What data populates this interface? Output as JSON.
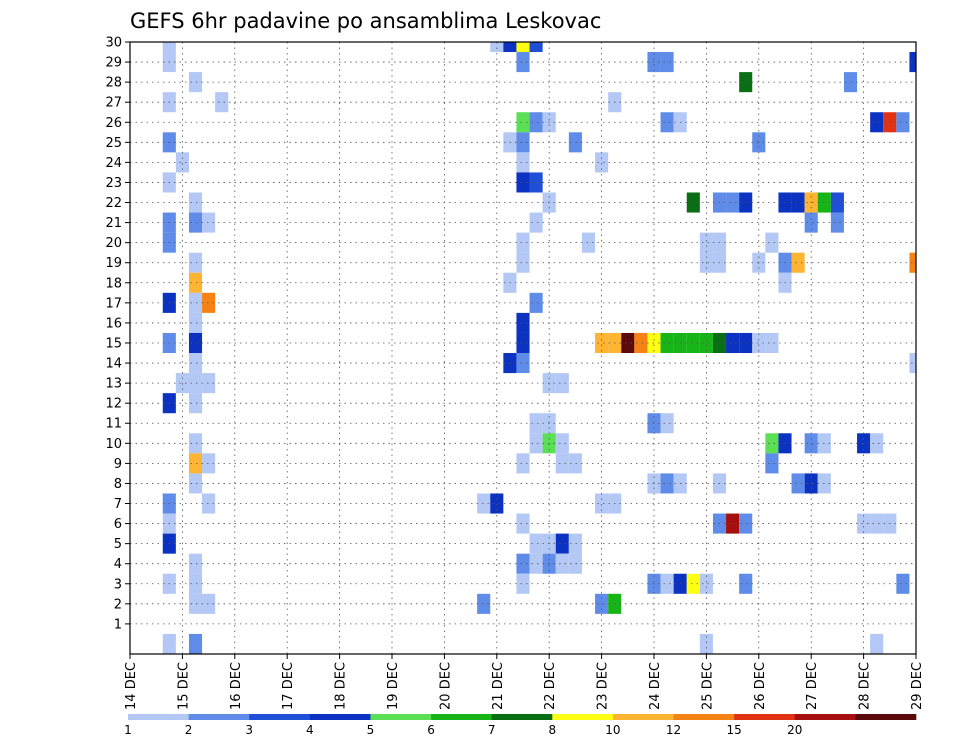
{
  "chart_data": {
    "type": "heatmap",
    "title": "GEFS 6hr padavine po ansamblima Leskovac",
    "xlabel": "",
    "ylabel": "",
    "x_tick_labels": [
      "14 DEC",
      "15 DEC",
      "16 DEC",
      "17 DEC",
      "18 DEC",
      "19 DEC",
      "20 DEC",
      "21 DEC",
      "22 DEC",
      "23 DEC",
      "24 DEC",
      "25 DEC",
      "26 DEC",
      "27 DEC",
      "28 DEC",
      "29 DEC"
    ],
    "y_tick_labels": [
      "1",
      "2",
      "3",
      "4",
      "5",
      "6",
      "7",
      "8",
      "9",
      "10",
      "11",
      "12",
      "13",
      "14",
      "15",
      "16",
      "17",
      "18",
      "19",
      "20",
      "21",
      "22",
      "23",
      "24",
      "25",
      "26",
      "27",
      "28",
      "29",
      "30"
    ],
    "x_unit": "day of December (6-hourly steps, 4 per day)",
    "xlim": [
      14,
      29
    ],
    "ylim": [
      0,
      30
    ],
    "grid": true,
    "colorbar": {
      "position": "bottom",
      "labels": [
        "1",
        "2",
        "3",
        "4",
        "5",
        "6",
        "7",
        "8",
        "10",
        "12",
        "15",
        "20"
      ],
      "colors": [
        "#b4c8f5",
        "#5f8ce8",
        "#1f4fd6",
        "#0b32c0",
        "#5be055",
        "#16b416",
        "#0a6e14",
        "#ffff14",
        "#ffb432",
        "#f58214",
        "#e13214",
        "#a50f0f",
        "#5a0a0a"
      ]
    },
    "cells": [
      {
        "d": 14.75,
        "m": 30,
        "c": 0
      },
      {
        "d": 21.0,
        "m": 30,
        "c": 0
      },
      {
        "d": 21.25,
        "m": 30,
        "c": 3
      },
      {
        "d": 21.5,
        "m": 30,
        "c": 7
      },
      {
        "d": 21.75,
        "m": 30,
        "c": 2
      },
      {
        "d": 14.75,
        "m": 29,
        "c": 0
      },
      {
        "d": 21.5,
        "m": 29,
        "c": 1
      },
      {
        "d": 24.0,
        "m": 29,
        "c": 1
      },
      {
        "d": 24.25,
        "m": 29,
        "c": 1
      },
      {
        "d": 29.0,
        "m": 29,
        "c": 3
      },
      {
        "d": 15.25,
        "m": 28,
        "c": 0
      },
      {
        "d": 25.75,
        "m": 28,
        "c": 6
      },
      {
        "d": 27.75,
        "m": 28,
        "c": 1
      },
      {
        "d": 14.75,
        "m": 27,
        "c": 0
      },
      {
        "d": 15.75,
        "m": 27,
        "c": 0
      },
      {
        "d": 23.25,
        "m": 27,
        "c": 0
      },
      {
        "d": 21.5,
        "m": 26,
        "c": 4
      },
      {
        "d": 21.75,
        "m": 26,
        "c": 1
      },
      {
        "d": 22.0,
        "m": 26,
        "c": 0
      },
      {
        "d": 24.25,
        "m": 26,
        "c": 1
      },
      {
        "d": 24.5,
        "m": 26,
        "c": 0
      },
      {
        "d": 28.25,
        "m": 26,
        "c": 3
      },
      {
        "d": 28.5,
        "m": 26,
        "c": 10
      },
      {
        "d": 28.75,
        "m": 26,
        "c": 1
      },
      {
        "d": 14.75,
        "m": 25,
        "c": 1
      },
      {
        "d": 21.25,
        "m": 25,
        "c": 0
      },
      {
        "d": 21.5,
        "m": 25,
        "c": 1
      },
      {
        "d": 22.5,
        "m": 25,
        "c": 1
      },
      {
        "d": 26.0,
        "m": 25,
        "c": 1
      },
      {
        "d": 15.0,
        "m": 24,
        "c": 0
      },
      {
        "d": 21.5,
        "m": 24,
        "c": 0
      },
      {
        "d": 23.0,
        "m": 24,
        "c": 0
      },
      {
        "d": 14.75,
        "m": 23,
        "c": 0
      },
      {
        "d": 21.5,
        "m": 23,
        "c": 3
      },
      {
        "d": 21.75,
        "m": 23,
        "c": 2
      },
      {
        "d": 15.25,
        "m": 22,
        "c": 0
      },
      {
        "d": 22.0,
        "m": 22,
        "c": 0
      },
      {
        "d": 24.75,
        "m": 22,
        "c": 6
      },
      {
        "d": 25.25,
        "m": 22,
        "c": 1
      },
      {
        "d": 25.5,
        "m": 22,
        "c": 1
      },
      {
        "d": 25.75,
        "m": 22,
        "c": 3
      },
      {
        "d": 26.5,
        "m": 22,
        "c": 3
      },
      {
        "d": 26.75,
        "m": 22,
        "c": 3
      },
      {
        "d": 27.0,
        "m": 22,
        "c": 8
      },
      {
        "d": 27.25,
        "m": 22,
        "c": 5
      },
      {
        "d": 27.5,
        "m": 22,
        "c": 2
      },
      {
        "d": 14.75,
        "m": 21,
        "c": 1
      },
      {
        "d": 15.25,
        "m": 21,
        "c": 1
      },
      {
        "d": 15.5,
        "m": 21,
        "c": 0
      },
      {
        "d": 21.75,
        "m": 21,
        "c": 0
      },
      {
        "d": 27.0,
        "m": 21,
        "c": 1
      },
      {
        "d": 27.5,
        "m": 21,
        "c": 1
      },
      {
        "d": 14.75,
        "m": 20,
        "c": 1
      },
      {
        "d": 21.5,
        "m": 20,
        "c": 0
      },
      {
        "d": 22.75,
        "m": 20,
        "c": 0
      },
      {
        "d": 25.0,
        "m": 20,
        "c": 0
      },
      {
        "d": 25.25,
        "m": 20,
        "c": 0
      },
      {
        "d": 26.25,
        "m": 20,
        "c": 0
      },
      {
        "d": 15.25,
        "m": 19,
        "c": 0
      },
      {
        "d": 21.5,
        "m": 19,
        "c": 0
      },
      {
        "d": 25.0,
        "m": 19,
        "c": 0
      },
      {
        "d": 25.25,
        "m": 19,
        "c": 0
      },
      {
        "d": 26.0,
        "m": 19,
        "c": 0
      },
      {
        "d": 26.5,
        "m": 19,
        "c": 1
      },
      {
        "d": 26.75,
        "m": 19,
        "c": 8
      },
      {
        "d": 29.0,
        "m": 19,
        "c": 9
      },
      {
        "d": 15.25,
        "m": 18,
        "c": 8
      },
      {
        "d": 21.25,
        "m": 18,
        "c": 0
      },
      {
        "d": 26.5,
        "m": 18,
        "c": 0
      },
      {
        "d": 14.75,
        "m": 17,
        "c": 3
      },
      {
        "d": 15.25,
        "m": 17,
        "c": 0
      },
      {
        "d": 15.5,
        "m": 17,
        "c": 9
      },
      {
        "d": 21.75,
        "m": 17,
        "c": 1
      },
      {
        "d": 15.25,
        "m": 16,
        "c": 0
      },
      {
        "d": 21.5,
        "m": 16,
        "c": 3
      },
      {
        "d": 14.75,
        "m": 15,
        "c": 1
      },
      {
        "d": 15.25,
        "m": 15,
        "c": 3
      },
      {
        "d": 21.5,
        "m": 15,
        "c": 3
      },
      {
        "d": 23.0,
        "m": 15,
        "c": 8
      },
      {
        "d": 23.25,
        "m": 15,
        "c": 8
      },
      {
        "d": 23.5,
        "m": 15,
        "c": 12
      },
      {
        "d": 23.75,
        "m": 15,
        "c": 9
      },
      {
        "d": 24.0,
        "m": 15,
        "c": 7
      },
      {
        "d": 24.25,
        "m": 15,
        "c": 5
      },
      {
        "d": 24.5,
        "m": 15,
        "c": 5
      },
      {
        "d": 24.75,
        "m": 15,
        "c": 5
      },
      {
        "d": 25.0,
        "m": 15,
        "c": 5
      },
      {
        "d": 25.25,
        "m": 15,
        "c": 6
      },
      {
        "d": 25.5,
        "m": 15,
        "c": 3
      },
      {
        "d": 25.75,
        "m": 15,
        "c": 3
      },
      {
        "d": 26.0,
        "m": 15,
        "c": 0
      },
      {
        "d": 26.25,
        "m": 15,
        "c": 0
      },
      {
        "d": 15.25,
        "m": 14,
        "c": 0
      },
      {
        "d": 21.25,
        "m": 14,
        "c": 3
      },
      {
        "d": 21.5,
        "m": 14,
        "c": 1
      },
      {
        "d": 29.0,
        "m": 14,
        "c": 0
      },
      {
        "d": 15.0,
        "m": 13,
        "c": 0
      },
      {
        "d": 15.25,
        "m": 13,
        "c": 0
      },
      {
        "d": 15.5,
        "m": 13,
        "c": 0
      },
      {
        "d": 22.0,
        "m": 13,
        "c": 0
      },
      {
        "d": 22.25,
        "m": 13,
        "c": 0
      },
      {
        "d": 14.75,
        "m": 12,
        "c": 3
      },
      {
        "d": 15.25,
        "m": 12,
        "c": 0
      },
      {
        "d": 21.75,
        "m": 11,
        "c": 0
      },
      {
        "d": 22.0,
        "m": 11,
        "c": 0
      },
      {
        "d": 24.0,
        "m": 11,
        "c": 1
      },
      {
        "d": 24.25,
        "m": 11,
        "c": 0
      },
      {
        "d": 15.25,
        "m": 10,
        "c": 0
      },
      {
        "d": 21.75,
        "m": 10,
        "c": 0
      },
      {
        "d": 22.0,
        "m": 10,
        "c": 4
      },
      {
        "d": 22.25,
        "m": 10,
        "c": 0
      },
      {
        "d": 26.25,
        "m": 10,
        "c": 4
      },
      {
        "d": 26.5,
        "m": 10,
        "c": 3
      },
      {
        "d": 27.0,
        "m": 10,
        "c": 1
      },
      {
        "d": 27.25,
        "m": 10,
        "c": 0
      },
      {
        "d": 28.0,
        "m": 10,
        "c": 3
      },
      {
        "d": 28.25,
        "m": 10,
        "c": 0
      },
      {
        "d": 15.25,
        "m": 9,
        "c": 8
      },
      {
        "d": 15.5,
        "m": 9,
        "c": 0
      },
      {
        "d": 21.5,
        "m": 9,
        "c": 0
      },
      {
        "d": 22.25,
        "m": 9,
        "c": 0
      },
      {
        "d": 22.5,
        "m": 9,
        "c": 0
      },
      {
        "d": 26.25,
        "m": 9,
        "c": 1
      },
      {
        "d": 15.25,
        "m": 8,
        "c": 0
      },
      {
        "d": 24.0,
        "m": 8,
        "c": 0
      },
      {
        "d": 24.25,
        "m": 8,
        "c": 1
      },
      {
        "d": 24.5,
        "m": 8,
        "c": 0
      },
      {
        "d": 25.25,
        "m": 8,
        "c": 0
      },
      {
        "d": 26.75,
        "m": 8,
        "c": 1
      },
      {
        "d": 27.0,
        "m": 8,
        "c": 3
      },
      {
        "d": 27.25,
        "m": 8,
        "c": 0
      },
      {
        "d": 14.75,
        "m": 7,
        "c": 1
      },
      {
        "d": 15.5,
        "m": 7,
        "c": 0
      },
      {
        "d": 20.75,
        "m": 7,
        "c": 0
      },
      {
        "d": 21.0,
        "m": 7,
        "c": 3
      },
      {
        "d": 23.0,
        "m": 7,
        "c": 0
      },
      {
        "d": 23.25,
        "m": 7,
        "c": 0
      },
      {
        "d": 14.75,
        "m": 6,
        "c": 0
      },
      {
        "d": 21.5,
        "m": 6,
        "c": 0
      },
      {
        "d": 25.25,
        "m": 6,
        "c": 1
      },
      {
        "d": 25.5,
        "m": 6,
        "c": 11
      },
      {
        "d": 25.75,
        "m": 6,
        "c": 1
      },
      {
        "d": 28.0,
        "m": 6,
        "c": 0
      },
      {
        "d": 28.25,
        "m": 6,
        "c": 0
      },
      {
        "d": 28.5,
        "m": 6,
        "c": 0
      },
      {
        "d": 14.75,
        "m": 5,
        "c": 3
      },
      {
        "d": 21.75,
        "m": 5,
        "c": 0
      },
      {
        "d": 22.0,
        "m": 5,
        "c": 0
      },
      {
        "d": 22.25,
        "m": 5,
        "c": 3
      },
      {
        "d": 22.5,
        "m": 5,
        "c": 0
      },
      {
        "d": 15.25,
        "m": 4,
        "c": 0
      },
      {
        "d": 21.5,
        "m": 4,
        "c": 1
      },
      {
        "d": 21.75,
        "m": 4,
        "c": 0
      },
      {
        "d": 22.0,
        "m": 4,
        "c": 1
      },
      {
        "d": 22.25,
        "m": 4,
        "c": 0
      },
      {
        "d": 22.5,
        "m": 4,
        "c": 0
      },
      {
        "d": 14.75,
        "m": 3,
        "c": 0
      },
      {
        "d": 15.25,
        "m": 3,
        "c": 0
      },
      {
        "d": 21.5,
        "m": 3,
        "c": 0
      },
      {
        "d": 24.0,
        "m": 3,
        "c": 1
      },
      {
        "d": 24.25,
        "m": 3,
        "c": 0
      },
      {
        "d": 24.5,
        "m": 3,
        "c": 3
      },
      {
        "d": 24.75,
        "m": 3,
        "c": 7
      },
      {
        "d": 25.0,
        "m": 3,
        "c": 0
      },
      {
        "d": 25.75,
        "m": 3,
        "c": 1
      },
      {
        "d": 28.75,
        "m": 3,
        "c": 1
      },
      {
        "d": 15.25,
        "m": 2,
        "c": 0
      },
      {
        "d": 15.5,
        "m": 2,
        "c": 0
      },
      {
        "d": 20.75,
        "m": 2,
        "c": 1
      },
      {
        "d": 23.0,
        "m": 2,
        "c": 1
      },
      {
        "d": 23.25,
        "m": 2,
        "c": 5
      },
      {
        "d": 14.75,
        "m": 0,
        "c": 0
      },
      {
        "d": 15.25,
        "m": 0,
        "c": 1
      },
      {
        "d": 25.0,
        "m": 0,
        "c": 0
      },
      {
        "d": 28.25,
        "m": 0,
        "c": 0
      }
    ]
  }
}
